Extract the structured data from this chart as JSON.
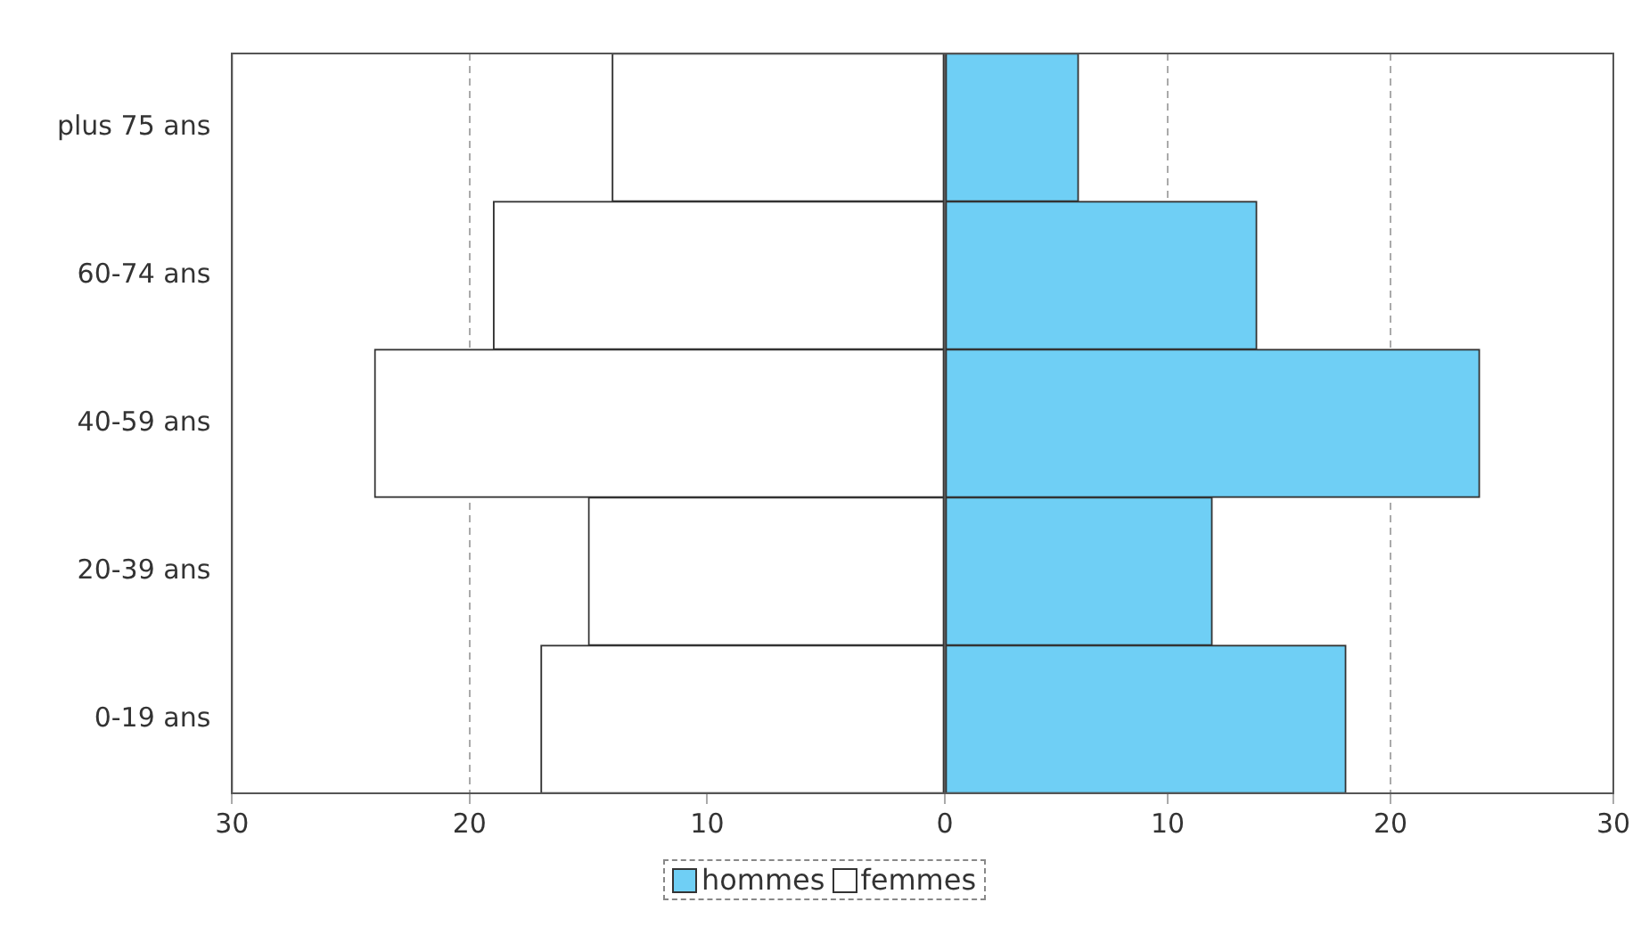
{
  "chart_data": [
    {
      "type": "bar",
      "orientation": "horizontal",
      "categories": [
        "plus 75 ans",
        "60-74 ans",
        "40-59 ans",
        "20-39 ans",
        "0-19 ans"
      ],
      "series": [
        {
          "name": "femmes",
          "color": "#ffffff",
          "values": [
            14,
            19,
            24,
            15,
            17
          ]
        }
      ],
      "xlim": [
        30,
        0
      ],
      "xticks": [
        30,
        20,
        10,
        {
          "value": 0,
          "label": null
        }
      ],
      "grid": "x",
      "legend": "bottom"
    },
    {
      "type": "bar",
      "orientation": "horizontal",
      "categories": [
        null,
        null,
        null,
        null,
        null
      ],
      "tick_labels": "x",
      "series": [
        {
          "name": "hommes",
          "color": "#6fcff5",
          "values": [
            6,
            14,
            24,
            12,
            18
          ]
        }
      ],
      "xlim": [
        0,
        30
      ],
      "xticks": [
        0,
        10,
        20,
        30
      ],
      "grid": "x",
      "legend": "bottom"
    }
  ]
}
